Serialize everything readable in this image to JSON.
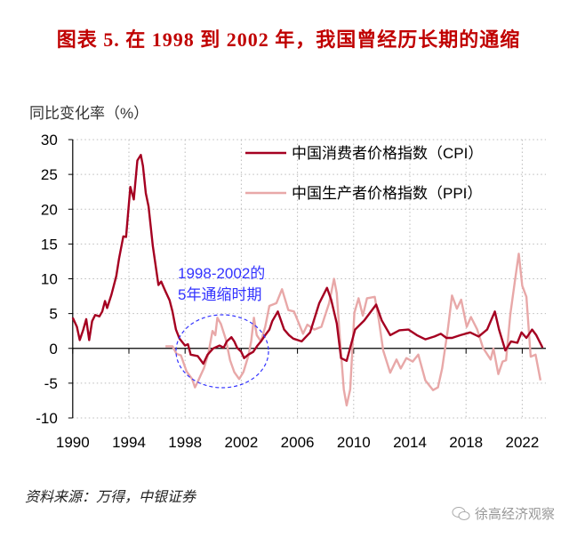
{
  "title": "图表 5. 在 1998 到 2002 年，我国曾经历长期的通缩",
  "source": "资料来源：万得，中银证券",
  "watermark": "徐高经济观察",
  "chart_data": {
    "type": "line",
    "title": "图表 5. 在 1998 到 2002 年，我国曾经历长期的通缩",
    "ylabel": "同比变化率（%）",
    "xlabel": "",
    "xlim": [
      1990,
      2023.6
    ],
    "ylim": [
      -10,
      30
    ],
    "xticks": [
      1990,
      1994,
      1998,
      2002,
      2006,
      2010,
      2014,
      2018,
      2022
    ],
    "yticks": [
      -10,
      -5,
      0,
      5,
      10,
      15,
      20,
      25,
      30
    ],
    "grid": true,
    "legend_position": "top-right",
    "annotation": {
      "text_lines": [
        "1998-2002的",
        "5年通缩时期"
      ],
      "color": "#3333ff",
      "span": [
        1998,
        2002
      ]
    },
    "series": [
      {
        "name": "中国消费者价格指数（CPI）",
        "color": "#a50021",
        "points": [
          [
            1990.0,
            4.4
          ],
          [
            1990.3,
            3.1
          ],
          [
            1990.5,
            1.2
          ],
          [
            1990.75,
            2.7
          ],
          [
            1990.96,
            4.2
          ],
          [
            1991.17,
            1.2
          ],
          [
            1991.38,
            3.9
          ],
          [
            1991.6,
            4.8
          ],
          [
            1991.9,
            4.6
          ],
          [
            1992.1,
            5.3
          ],
          [
            1992.3,
            6.8
          ],
          [
            1992.45,
            5.8
          ],
          [
            1992.75,
            7.7
          ],
          [
            1993.1,
            10.4
          ],
          [
            1993.3,
            12.9
          ],
          [
            1993.6,
            16.1
          ],
          [
            1993.8,
            16.0
          ],
          [
            1994.1,
            23.2
          ],
          [
            1994.35,
            21.4
          ],
          [
            1994.6,
            27.0
          ],
          [
            1994.85,
            27.8
          ],
          [
            1995.0,
            26.2
          ],
          [
            1995.2,
            22.3
          ],
          [
            1995.4,
            20.4
          ],
          [
            1995.7,
            14.7
          ],
          [
            1996.1,
            9.1
          ],
          [
            1996.3,
            9.6
          ],
          [
            1996.6,
            8.2
          ],
          [
            1996.9,
            6.9
          ],
          [
            1997.1,
            5.3
          ],
          [
            1997.35,
            2.7
          ],
          [
            1997.6,
            1.4
          ],
          [
            1998.0,
            0.4
          ],
          [
            1998.2,
            0.6
          ],
          [
            1998.4,
            -0.9
          ],
          [
            1998.9,
            -1.1
          ],
          [
            1999.3,
            -2.2
          ],
          [
            1999.6,
            -0.9
          ],
          [
            2000.0,
            0.0
          ],
          [
            2000.45,
            0.4
          ],
          [
            2000.75,
            0.1
          ],
          [
            2000.97,
            1.0
          ],
          [
            2001.3,
            1.6
          ],
          [
            2001.5,
            1.0
          ],
          [
            2001.7,
            0.1
          ],
          [
            2002.0,
            -0.5
          ],
          [
            2002.2,
            -1.4
          ],
          [
            2002.5,
            -0.9
          ],
          [
            2002.85,
            -0.5
          ],
          [
            2003.15,
            0.4
          ],
          [
            2003.4,
            1.0
          ],
          [
            2003.7,
            1.9
          ],
          [
            2004.0,
            2.7
          ],
          [
            2004.2,
            3.9
          ],
          [
            2004.6,
            5.3
          ],
          [
            2005.05,
            2.7
          ],
          [
            2005.4,
            1.9
          ],
          [
            2005.7,
            1.4
          ],
          [
            2006.3,
            1.0
          ],
          [
            2006.9,
            2.3
          ],
          [
            2007.55,
            6.5
          ],
          [
            2008.1,
            8.7
          ],
          [
            2008.4,
            7.0
          ],
          [
            2008.8,
            3.6
          ],
          [
            2009.1,
            -1.4
          ],
          [
            2009.5,
            -1.8
          ],
          [
            2010.1,
            2.7
          ],
          [
            2010.75,
            4.0
          ],
          [
            2011.6,
            6.3
          ],
          [
            2012.0,
            4.0
          ],
          [
            2012.6,
            1.9
          ],
          [
            2013.25,
            2.6
          ],
          [
            2013.9,
            2.7
          ],
          [
            2014.5,
            1.9
          ],
          [
            2015.1,
            1.3
          ],
          [
            2015.75,
            1.7
          ],
          [
            2016.2,
            2.1
          ],
          [
            2016.6,
            1.5
          ],
          [
            2017.0,
            1.5
          ],
          [
            2017.6,
            1.9
          ],
          [
            2018.3,
            2.3
          ],
          [
            2018.9,
            1.7
          ],
          [
            2019.5,
            2.7
          ],
          [
            2020.05,
            5.3
          ],
          [
            2020.35,
            2.7
          ],
          [
            2020.8,
            -0.3
          ],
          [
            2021.2,
            1.0
          ],
          [
            2021.65,
            0.8
          ],
          [
            2021.95,
            2.3
          ],
          [
            2022.3,
            1.5
          ],
          [
            2022.7,
            2.7
          ],
          [
            2023.0,
            1.9
          ],
          [
            2023.45,
            0.1
          ]
        ]
      },
      {
        "name": "中国生产者价格指数（PPI）",
        "color": "#e8a8a8",
        "points": [
          [
            1996.6,
            0.3
          ],
          [
            1997.1,
            0.3
          ],
          [
            1997.4,
            -0.8
          ],
          [
            1997.7,
            -1.0
          ],
          [
            1998.1,
            -3.3
          ],
          [
            1998.5,
            -4.4
          ],
          [
            1998.7,
            -5.6
          ],
          [
            1998.9,
            -4.8
          ],
          [
            1999.35,
            -2.8
          ],
          [
            1999.65,
            -0.8
          ],
          [
            1999.95,
            2.5
          ],
          [
            2000.15,
            1.9
          ],
          [
            2000.3,
            4.4
          ],
          [
            2000.55,
            3.5
          ],
          [
            2000.9,
            1.3
          ],
          [
            2001.2,
            -1.7
          ],
          [
            2001.5,
            -3.4
          ],
          [
            2001.85,
            -4.4
          ],
          [
            2002.15,
            -3.4
          ],
          [
            2002.5,
            -1.1
          ],
          [
            2002.7,
            1.0
          ],
          [
            2002.9,
            4.4
          ],
          [
            2003.1,
            1.9
          ],
          [
            2003.4,
            1.0
          ],
          [
            2003.7,
            3.1
          ],
          [
            2004.0,
            6.1
          ],
          [
            2004.5,
            6.5
          ],
          [
            2004.9,
            8.5
          ],
          [
            2005.35,
            5.5
          ],
          [
            2005.75,
            5.3
          ],
          [
            2006.4,
            2.1
          ],
          [
            2006.7,
            3.4
          ],
          [
            2007.2,
            2.7
          ],
          [
            2007.7,
            3.1
          ],
          [
            2008.25,
            6.5
          ],
          [
            2008.6,
            10.0
          ],
          [
            2008.8,
            7.9
          ],
          [
            2009.05,
            0.6
          ],
          [
            2009.3,
            -5.9
          ],
          [
            2009.5,
            -8.2
          ],
          [
            2009.75,
            -5.9
          ],
          [
            2010.05,
            5.1
          ],
          [
            2010.35,
            7.2
          ],
          [
            2010.65,
            4.7
          ],
          [
            2010.95,
            7.2
          ],
          [
            2011.5,
            7.4
          ],
          [
            2011.8,
            4.0
          ],
          [
            2012.1,
            -0.3
          ],
          [
            2012.6,
            -3.5
          ],
          [
            2013.05,
            -1.6
          ],
          [
            2013.35,
            -2.9
          ],
          [
            2013.75,
            -1.4
          ],
          [
            2014.2,
            -1.9
          ],
          [
            2014.6,
            -0.9
          ],
          [
            2015.1,
            -4.6
          ],
          [
            2015.65,
            -6.0
          ],
          [
            2016.0,
            -5.6
          ],
          [
            2016.3,
            -2.9
          ],
          [
            2016.7,
            2.7
          ],
          [
            2017.0,
            7.6
          ],
          [
            2017.35,
            5.7
          ],
          [
            2017.65,
            7.0
          ],
          [
            2018.05,
            3.1
          ],
          [
            2018.35,
            4.5
          ],
          [
            2018.8,
            2.7
          ],
          [
            2019.2,
            0.1
          ],
          [
            2019.75,
            -1.6
          ],
          [
            2019.95,
            0.0
          ],
          [
            2020.3,
            -3.7
          ],
          [
            2020.6,
            -1.9
          ],
          [
            2020.85,
            -1.7
          ],
          [
            2021.15,
            4.9
          ],
          [
            2021.5,
            10.0
          ],
          [
            2021.75,
            13.6
          ],
          [
            2022.0,
            9.0
          ],
          [
            2022.3,
            7.4
          ],
          [
            2022.6,
            -1.2
          ],
          [
            2022.95,
            -0.9
          ],
          [
            2023.3,
            -4.6
          ]
        ]
      }
    ]
  }
}
